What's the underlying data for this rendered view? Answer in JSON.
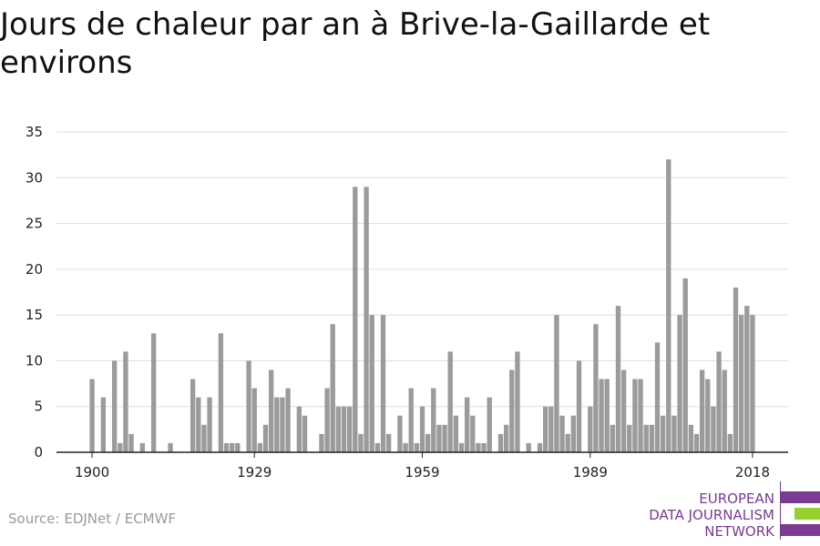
{
  "title": "Jours de chaleur par an à Brive-la-Gaillarde et environs",
  "source": "Source: EDJNet / ECMWF",
  "logo": {
    "lines": [
      "EUROPEAN",
      "DATA JOURNALISM",
      "NETWORK"
    ],
    "purple": "#7b3b94",
    "green": "#97d12b"
  },
  "colors": {
    "bar": "#9b9b9b",
    "grid": "#dddddd",
    "axis": "#222222"
  },
  "chart_data": {
    "type": "bar",
    "title": "Jours de chaleur par an à Brive-la-Gaillarde et environs",
    "xlabel": "",
    "ylabel": "",
    "x_start": 1900,
    "x_end": 2018,
    "xticks": [
      1900,
      1929,
      1959,
      1989,
      2018
    ],
    "yticks": [
      0,
      5,
      10,
      15,
      20,
      25,
      30,
      35
    ],
    "ylim": [
      0,
      35
    ],
    "grid": true,
    "legend": "none",
    "x": [
      1900,
      1901,
      1902,
      1903,
      1904,
      1905,
      1906,
      1907,
      1908,
      1909,
      1910,
      1911,
      1912,
      1913,
      1914,
      1915,
      1916,
      1917,
      1918,
      1919,
      1920,
      1921,
      1922,
      1923,
      1924,
      1925,
      1926,
      1927,
      1928,
      1929,
      1930,
      1931,
      1932,
      1933,
      1934,
      1935,
      1936,
      1937,
      1938,
      1939,
      1940,
      1941,
      1942,
      1943,
      1944,
      1945,
      1946,
      1947,
      1948,
      1949,
      1950,
      1951,
      1952,
      1953,
      1954,
      1955,
      1956,
      1957,
      1958,
      1959,
      1960,
      1961,
      1962,
      1963,
      1964,
      1965,
      1966,
      1967,
      1968,
      1969,
      1970,
      1971,
      1972,
      1973,
      1974,
      1975,
      1976,
      1977,
      1978,
      1979,
      1980,
      1981,
      1982,
      1983,
      1984,
      1985,
      1986,
      1987,
      1988,
      1989,
      1990,
      1991,
      1992,
      1993,
      1994,
      1995,
      1996,
      1997,
      1998,
      1999,
      2000,
      2001,
      2002,
      2003,
      2004,
      2005,
      2006,
      2007,
      2008,
      2009,
      2010,
      2011,
      2012,
      2013,
      2014,
      2015,
      2016,
      2017,
      2018
    ],
    "values": [
      8,
      0,
      6,
      0,
      10,
      1,
      11,
      2,
      0,
      1,
      0,
      13,
      0,
      0,
      1,
      0,
      0,
      0,
      8,
      6,
      3,
      6,
      0,
      13,
      1,
      1,
      1,
      0,
      10,
      7,
      1,
      3,
      9,
      6,
      6,
      7,
      0,
      5,
      4,
      0,
      0,
      2,
      7,
      14,
      5,
      5,
      5,
      29,
      2,
      29,
      15,
      1,
      15,
      2,
      0,
      4,
      1,
      7,
      1,
      5,
      2,
      7,
      3,
      3,
      11,
      4,
      1,
      6,
      4,
      1,
      1,
      6,
      0,
      2,
      3,
      9,
      11,
      0,
      1,
      0,
      1,
      5,
      5,
      15,
      4,
      2,
      4,
      10,
      0,
      5,
      14,
      8,
      8,
      3,
      16,
      9,
      3,
      8,
      8,
      3,
      3,
      12,
      4,
      32,
      4,
      15,
      19,
      3,
      2,
      9,
      8,
      5,
      11,
      9,
      2,
      18,
      15,
      16,
      15
    ]
  }
}
